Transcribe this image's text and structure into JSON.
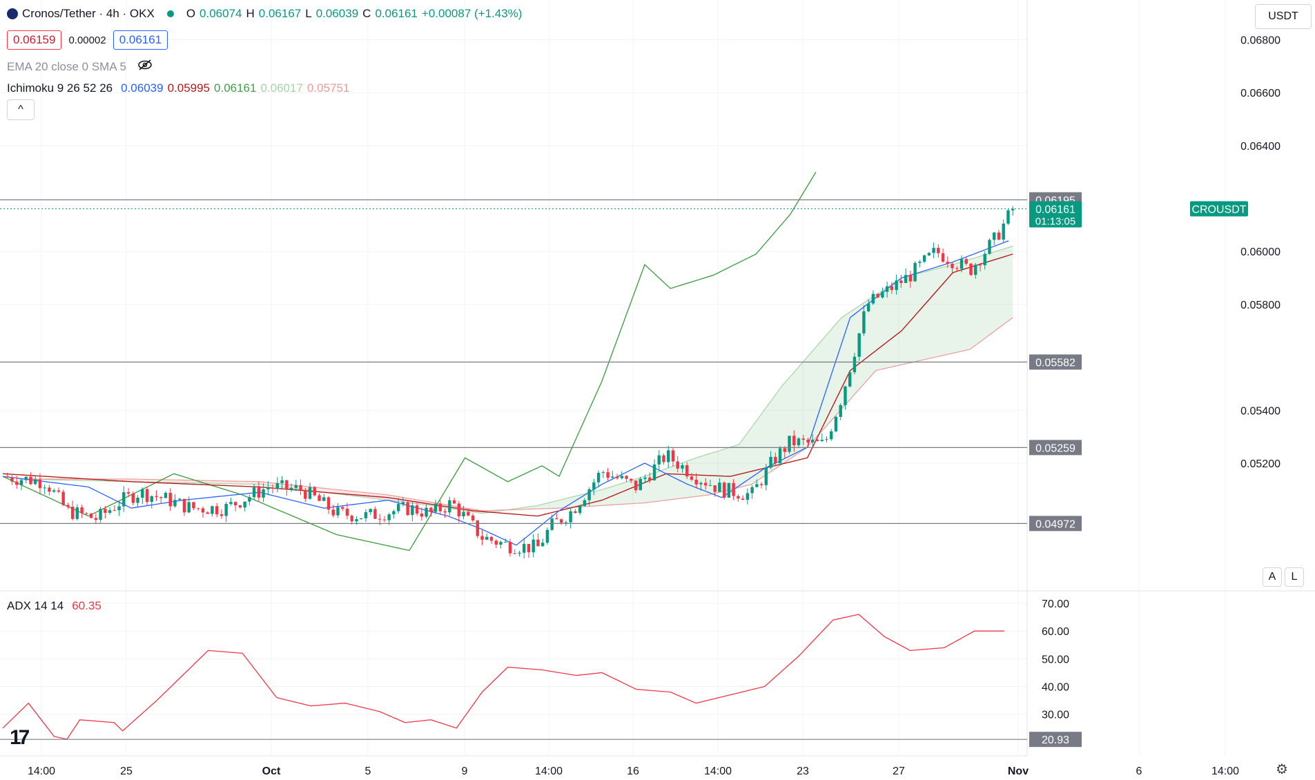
{
  "header": {
    "symbol": "Cronos/Tether · 4h · OKX",
    "o_label": "O",
    "o_value": "0.06074",
    "h_label": "H",
    "h_value": "0.06167",
    "l_label": "L",
    "l_value": "0.06039",
    "c_label": "C",
    "c_value": "0.06161",
    "change": "+0.00087 (+1.43%)",
    "bid": "0.06159",
    "spread": "0.00002",
    "ask": "0.06161"
  },
  "indicators": {
    "ema_label": "EMA 20 close 0 SMA 5",
    "ichimoku_label": "Ichimoku 9 26 52 26",
    "ichimoku_values": [
      "0.06039",
      "0.05995",
      "0.06161",
      "0.06017",
      "0.05751"
    ],
    "adx_label": "ADX 14 14",
    "adx_value": "60.35"
  },
  "controls": {
    "currency": "USDT",
    "auto": "A",
    "log": "L",
    "collapse": "^"
  },
  "colors": {
    "up": "#089981",
    "down": "#f23645",
    "tenkan": "#2962ff",
    "kijun": "#b71c1c",
    "chikou": "#43a047",
    "span_a": "#a5d6a7",
    "span_b": "#ef9a9a",
    "adx": "#f23645"
  },
  "chart_data": [
    {
      "type": "candlestick",
      "symbol_tag": "CROUSDT",
      "last_price": "0.06161",
      "countdown": "01:13:05",
      "price_levels": [
        "0.06195",
        "0.05582",
        "0.05259",
        "0.04972"
      ],
      "y_ticks": [
        "0.06800",
        "0.06600",
        "0.06400",
        "0.06000",
        "0.05800",
        "0.05400",
        "0.05200"
      ],
      "ylim": [
        0.0472,
        0.0695
      ],
      "x_ticks": [
        "14:00",
        "25",
        "Oct",
        "5",
        "9",
        "14:00",
        "16",
        "14:00",
        "23",
        "27",
        "Nov",
        "6",
        "14:00"
      ],
      "candle_count": 217,
      "anchors": [
        [
          0,
          0.0515
        ],
        [
          10,
          0.0513
        ],
        [
          15,
          0.0502
        ],
        [
          22,
          0.0499
        ],
        [
          28,
          0.0506
        ],
        [
          32,
          0.0509
        ],
        [
          37,
          0.0507
        ],
        [
          44,
          0.0503
        ],
        [
          52,
          0.0503
        ],
        [
          62,
          0.0511
        ],
        [
          70,
          0.051
        ],
        [
          78,
          0.0501
        ],
        [
          85,
          0.05
        ],
        [
          95,
          0.0503
        ],
        [
          100,
          0.0501
        ],
        [
          105,
          0.0505
        ],
        [
          112,
          0.0492
        ],
        [
          118,
          0.0489
        ],
        [
          125,
          0.0488
        ],
        [
          128,
          0.0496
        ],
        [
          133,
          0.0502
        ],
        [
          140,
          0.0517
        ],
        [
          148,
          0.0511
        ],
        [
          155,
          0.0523
        ],
        [
          162,
          0.0515
        ],
        [
          168,
          0.051
        ],
        [
          175,
          0.0508
        ],
        [
          180,
          0.0521
        ],
        [
          184,
          0.0528
        ],
        [
          192,
          0.0527
        ],
        [
          196,
          0.0545
        ],
        [
          202,
          0.058
        ],
        [
          212,
          0.0591
        ],
        [
          218,
          0.06
        ],
        [
          226,
          0.0593
        ],
        [
          232,
          0.0605
        ],
        [
          236,
          0.0616
        ]
      ],
      "ichimoku_lines": {
        "tenkan": [
          [
            0,
            0.0515
          ],
          [
            20,
            0.0511
          ],
          [
            30,
            0.0503
          ],
          [
            42,
            0.0506
          ],
          [
            60,
            0.0509
          ],
          [
            75,
            0.0503
          ],
          [
            90,
            0.0506
          ],
          [
            104,
            0.05
          ],
          [
            112,
            0.0495
          ],
          [
            120,
            0.0489
          ],
          [
            130,
            0.0502
          ],
          [
            140,
            0.0512
          ],
          [
            150,
            0.052
          ],
          [
            160,
            0.0512
          ],
          [
            168,
            0.0507
          ],
          [
            178,
            0.0518
          ],
          [
            188,
            0.0526
          ],
          [
            198,
            0.0575
          ],
          [
            210,
            0.059
          ],
          [
            222,
            0.0596
          ],
          [
            235,
            0.0604
          ]
        ],
        "kijun": [
          [
            0,
            0.0516
          ],
          [
            30,
            0.0513
          ],
          [
            60,
            0.0511
          ],
          [
            90,
            0.0507
          ],
          [
            110,
            0.0502
          ],
          [
            125,
            0.05
          ],
          [
            140,
            0.0506
          ],
          [
            155,
            0.0516
          ],
          [
            170,
            0.0515
          ],
          [
            188,
            0.0522
          ],
          [
            198,
            0.0555
          ],
          [
            210,
            0.057
          ],
          [
            222,
            0.0592
          ],
          [
            236,
            0.0599
          ]
        ],
        "chikou": [
          [
            0,
            0.0515
          ],
          [
            20,
            0.05
          ],
          [
            40,
            0.0516
          ],
          [
            56,
            0.0508
          ],
          [
            78,
            0.0493
          ],
          [
            95,
            0.0487
          ],
          [
            108,
            0.0522
          ],
          [
            118,
            0.0513
          ],
          [
            126,
            0.0519
          ],
          [
            130,
            0.0515
          ],
          [
            140,
            0.0551
          ],
          [
            150,
            0.0595
          ],
          [
            156,
            0.0586
          ],
          [
            166,
            0.0591
          ],
          [
            176,
            0.0599
          ],
          [
            184,
            0.0614
          ],
          [
            190,
            0.063
          ]
        ],
        "span_a": [
          [
            4,
            0.0514
          ],
          [
            30,
            0.0513
          ],
          [
            60,
            0.0512
          ],
          [
            80,
            0.0508
          ],
          [
            100,
            0.0504
          ],
          [
            112,
            0.0501
          ],
          [
            125,
            0.0504
          ],
          [
            140,
            0.051
          ],
          [
            150,
            0.0515
          ],
          [
            162,
            0.0522
          ],
          [
            172,
            0.0527
          ],
          [
            182,
            0.0549
          ],
          [
            196,
            0.0575
          ],
          [
            210,
            0.059
          ],
          [
            222,
            0.0595
          ],
          [
            236,
            0.0602
          ]
        ],
        "span_b": [
          [
            4,
            0.0514
          ],
          [
            30,
            0.0514
          ],
          [
            60,
            0.0513
          ],
          [
            90,
            0.0508
          ],
          [
            112,
            0.0502
          ],
          [
            130,
            0.0503
          ],
          [
            150,
            0.0505
          ],
          [
            165,
            0.0508
          ],
          [
            175,
            0.0512
          ],
          [
            188,
            0.0526
          ],
          [
            204,
            0.0555
          ],
          [
            215,
            0.0559
          ],
          [
            226,
            0.0563
          ],
          [
            236,
            0.0575
          ]
        ]
      }
    },
    {
      "type": "line",
      "series": [
        {
          "name": "ADX 14 14",
          "values": "see points"
        }
      ],
      "y_ticks": [
        "70.00",
        "60.00",
        "50.00",
        "40.00",
        "30.00"
      ],
      "level_label": "20.93",
      "ylim": [
        15,
        74
      ],
      "points": [
        [
          0,
          25
        ],
        [
          6,
          34
        ],
        [
          12,
          22
        ],
        [
          15,
          21
        ],
        [
          18,
          28
        ],
        [
          26,
          27
        ],
        [
          28,
          24
        ],
        [
          36,
          35
        ],
        [
          48,
          53
        ],
        [
          56,
          52
        ],
        [
          64,
          36
        ],
        [
          72,
          33
        ],
        [
          80,
          34
        ],
        [
          88,
          31
        ],
        [
          94,
          27
        ],
        [
          100,
          28
        ],
        [
          106,
          25
        ],
        [
          112,
          38
        ],
        [
          118,
          47
        ],
        [
          126,
          46
        ],
        [
          134,
          44
        ],
        [
          140,
          45
        ],
        [
          148,
          39
        ],
        [
          156,
          38
        ],
        [
          162,
          34
        ],
        [
          170,
          37
        ],
        [
          178,
          40
        ],
        [
          186,
          51
        ],
        [
          194,
          64
        ],
        [
          200,
          66
        ],
        [
          206,
          58
        ],
        [
          212,
          53
        ],
        [
          220,
          54
        ],
        [
          227,
          60
        ],
        [
          234,
          60
        ]
      ]
    }
  ]
}
